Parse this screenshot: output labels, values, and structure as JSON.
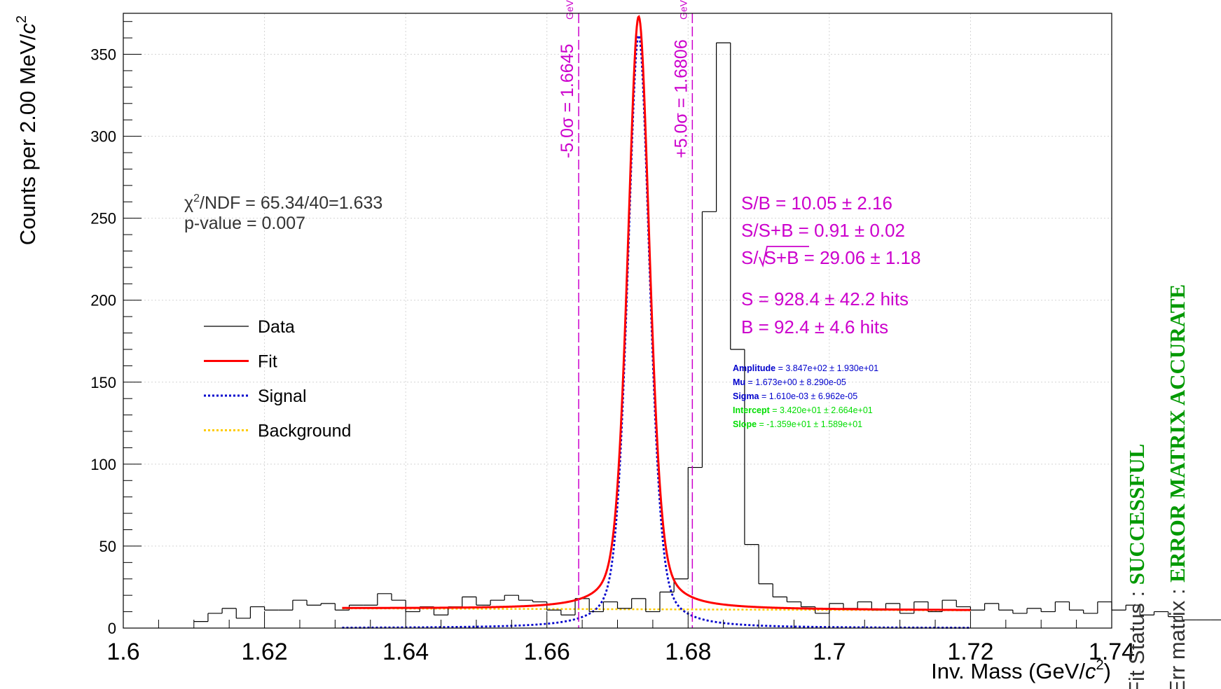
{
  "chart_data": {
    "type": "histogram",
    "xlabel_main": "Inv. Mass (GeV/",
    "xlabel_c": "c",
    "xlabel_sup": "2",
    "xlabel_end": ")",
    "ylabel_main": "Counts per 2.00 MeV/",
    "ylabel_c": "c",
    "ylabel_sup": "2",
    "xlim": [
      1.6,
      1.74
    ],
    "ylim": [
      0,
      375
    ],
    "x_ticks": [
      {
        "v": 1.6,
        "label": "1.6"
      },
      {
        "v": 1.62,
        "label": "1.62"
      },
      {
        "v": 1.64,
        "label": "1.64"
      },
      {
        "v": 1.66,
        "label": "1.66"
      },
      {
        "v": 1.68,
        "label": "1.68"
      },
      {
        "v": 1.7,
        "label": "1.7"
      },
      {
        "v": 1.72,
        "label": "1.72"
      },
      {
        "v": 1.74,
        "label": "1.74"
      }
    ],
    "y_ticks": [
      {
        "v": 0,
        "label": "0"
      },
      {
        "v": 50,
        "label": "50"
      },
      {
        "v": 100,
        "label": "100"
      },
      {
        "v": 150,
        "label": "150"
      },
      {
        "v": 200,
        "label": "200"
      },
      {
        "v": 250,
        "label": "250"
      },
      {
        "v": 300,
        "label": "300"
      },
      {
        "v": 350,
        "label": "350"
      }
    ],
    "grid": true,
    "histogram": {
      "name": "Data",
      "bin_start": 1.61,
      "bin_width": 0.002,
      "counts": [
        4,
        9,
        12,
        6,
        13,
        11,
        11,
        17,
        14,
        15,
        11,
        14,
        14,
        21,
        17,
        10,
        13,
        8,
        13,
        19,
        14,
        17,
        20,
        17,
        16,
        11,
        8,
        18,
        10,
        16,
        12,
        18,
        10,
        22,
        30,
        98,
        254,
        357,
        170,
        51,
        27,
        19,
        16,
        13,
        9,
        15,
        12,
        16,
        11,
        15,
        9,
        16,
        10,
        17,
        13,
        11,
        15,
        11,
        9,
        12,
        10,
        16,
        11,
        9,
        16,
        11,
        14,
        8,
        10,
        7,
        5,
        5,
        5
      ]
    },
    "fit_range": [
      1.631,
      1.72
    ],
    "model": {
      "amplitude": 384.7,
      "mu": 1.673,
      "sigma": 0.00161,
      "intercept": 34.2,
      "slope": -13.59,
      "fit_peak": 373
    },
    "series": [
      {
        "name": "Data",
        "color": "#000000"
      },
      {
        "name": "Fit",
        "color": "#ff0000"
      },
      {
        "name": "Signal",
        "color": "#0000cc"
      },
      {
        "name": "Background",
        "color": "#ffcc00"
      }
    ],
    "sigma_lines": [
      {
        "x": 1.6645,
        "label": "-5.0σ = 1.6645",
        "unit": "GeV"
      },
      {
        "x": 1.6806,
        "label": "+5.0σ = 1.6806",
        "unit": "GeV"
      }
    ],
    "chi2_prefix": "χ",
    "chi2_sup": "2",
    "chi2_text": "/NDF = 65.34/40=1.633",
    "pvalue_text": "p-value = 0.007",
    "stats": {
      "sb": "S/B = 10.05 ± 2.16",
      "s_over_splusb": "S/S+B = 0.91 ± 0.02",
      "sig_prefix": "S/",
      "sig_root": "S+B",
      "sig_suffix": " = 29.06 ± 1.18",
      "s": "S = 928.4 ± 42.2 hits",
      "b": "B = 92.4 ±  4.6 hits"
    },
    "params": [
      {
        "name": "Amplitude",
        "value": " = 3.847e+02 ± 1.930e+01",
        "color": "#0000cc"
      },
      {
        "name": "Mu",
        "value": " = 1.673e+00 ± 8.290e-05",
        "color": "#0000cc"
      },
      {
        "name": "Sigma",
        "value": " = 1.610e-03 ± 6.962e-05",
        "color": "#0000cc"
      },
      {
        "name": "Intercept",
        "value": " = 3.420e+01 ± 2.664e+01",
        "color": "#00dd00"
      },
      {
        "name": "Slope",
        "value": " = -1.359e+01 ± 1.589e+01",
        "color": "#00dd00"
      }
    ],
    "fit_status": {
      "label": "Fit Status : ",
      "value": "SUCCESSFUL"
    },
    "err_matrix": {
      "label": "Err matrix : ",
      "value": "ERROR MATRIX ACCURATE"
    },
    "colors": {
      "magenta": "#cc00cc",
      "status_green": "#009900"
    }
  }
}
